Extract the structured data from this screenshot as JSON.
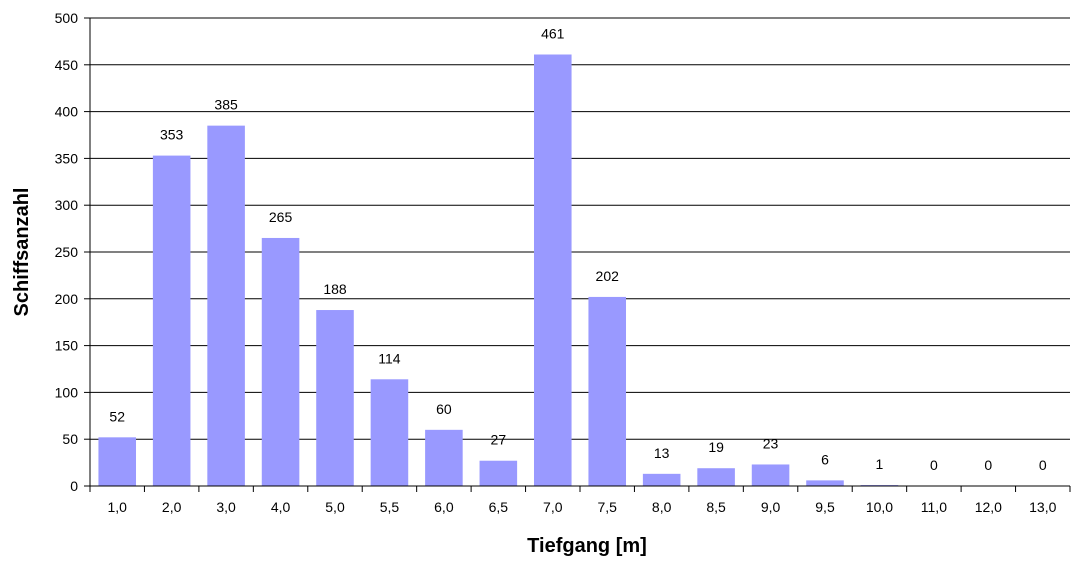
{
  "chart_data": {
    "type": "bar",
    "title": "",
    "xlabel": "Tiefgang [m]",
    "ylabel": "Schiffsanzahl",
    "categories": [
      "1,0",
      "2,0",
      "3,0",
      "4,0",
      "5,0",
      "5,5",
      "6,0",
      "6,5",
      "7,0",
      "7,5",
      "8,0",
      "8,5",
      "9,0",
      "9,5",
      "10,0",
      "11,0",
      "12,0",
      "13,0"
    ],
    "values": [
      52,
      353,
      385,
      265,
      188,
      114,
      60,
      27,
      461,
      202,
      13,
      19,
      23,
      6,
      1,
      0,
      0,
      0
    ],
    "ylim": [
      0,
      500
    ],
    "yticks": [
      0,
      50,
      100,
      150,
      200,
      250,
      300,
      350,
      400,
      450,
      500
    ],
    "grid": true,
    "legend": "none",
    "bar_color": "#9999ff",
    "grid_color": "#000000"
  }
}
